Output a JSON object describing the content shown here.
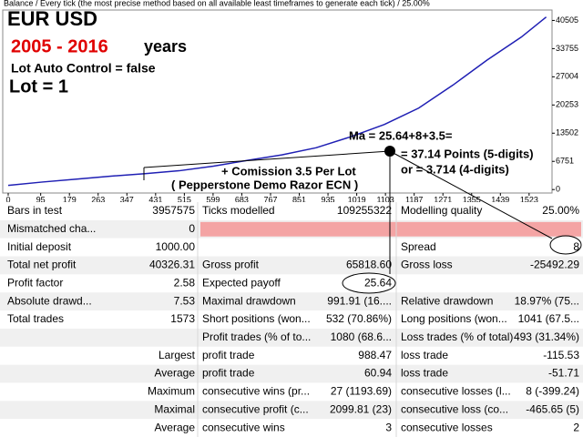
{
  "chart_data": {
    "type": "line",
    "title": "Balance / Every tick (the most precise method based on all available least timeframes to generate each tick) / 25.00%",
    "x": [
      0,
      100,
      200,
      300,
      400,
      500,
      600,
      700,
      800,
      900,
      1000,
      1100,
      1200,
      1300,
      1400,
      1500,
      1573
    ],
    "series": [
      {
        "name": "Balance",
        "color": "#1f1fb4",
        "values": [
          1000,
          1800,
          2500,
          3200,
          3800,
          4500,
          5600,
          7000,
          8300,
          10000,
          12600,
          15600,
          19500,
          25000,
          31000,
          36500,
          41326
        ]
      }
    ],
    "xlim": [
      0,
      1590
    ],
    "xticks": [
      0,
      95,
      179,
      263,
      347,
      431,
      515,
      599,
      683,
      767,
      851,
      935,
      1019,
      1103,
      1187,
      1271,
      1355,
      1439,
      1523
    ],
    "ylim": [
      -830,
      43000
    ],
    "yticks": [
      0,
      6751,
      13502,
      20253,
      27004,
      33755,
      40505
    ],
    "annotations": {
      "pair": "EUR USD",
      "period": "2005 - 2016",
      "period_unit": "years",
      "lot_control": "Lot Auto Control = false",
      "lot": "Lot = 1",
      "ma": "Ma = 25.64+8+3.5=",
      "points5": "= 37.14 Points (5-digits)",
      "points4": "or = 3.714 (4-digits)",
      "commission": "+ Comission 3.5 Per Lot",
      "broker": "( Pepperstone Demo Razor ECN )"
    }
  },
  "table": {
    "rows": [
      [
        "Bars in test",
        "3957575",
        "Ticks modelled",
        "109255322",
        "Modelling quality",
        "25.00%"
      ],
      [
        "Mismatched cha...",
        "0",
        null,
        null,
        null,
        null
      ],
      [
        "Initial deposit",
        "1000.00",
        null,
        null,
        "Spread",
        "8"
      ],
      [
        "Total net profit",
        "40326.31",
        "Gross profit",
        "65818.60",
        "Gross loss",
        "-25492.29"
      ],
      [
        "Profit factor",
        "2.58",
        "Expected payoff",
        "25.64",
        null,
        null
      ],
      [
        "Absolute drawd...",
        "7.53",
        "Maximal drawdown",
        "991.91 (16....",
        "Relative drawdown",
        "18.97% (75..."
      ],
      [
        "Total trades",
        "1573",
        "Short positions (won...",
        "532 (70.86%)",
        "Long positions (won...",
        "1041 (67.5..."
      ],
      [
        null,
        null,
        "Profit trades (% of to...",
        "1080 (68.6...",
        "Loss trades (% of total)",
        "493 (31.34%)"
      ],
      [
        null,
        "Largest",
        "profit trade",
        "988.47",
        "loss trade",
        "-115.53"
      ],
      [
        null,
        "Average",
        "profit trade",
        "60.94",
        "loss trade",
        "-51.71"
      ],
      [
        null,
        "Maximum",
        "consecutive wins (pr...",
        "27 (1193.69)",
        "consecutive losses (l...",
        "8 (-399.24)"
      ],
      [
        null,
        "Maximal",
        "consecutive profit (c...",
        "2099.81 (23)",
        "consecutive loss (co...",
        "-465.65 (5)"
      ],
      [
        null,
        "Average",
        "consecutive wins",
        "3",
        "consecutive losses",
        "2"
      ]
    ]
  }
}
